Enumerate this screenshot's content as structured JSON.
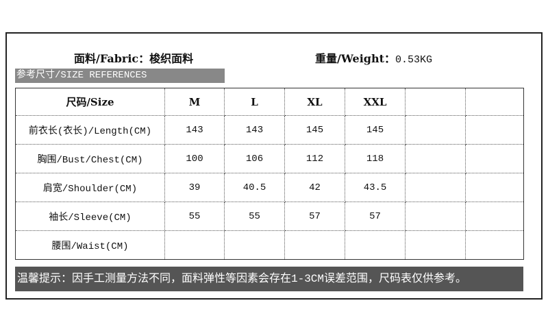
{
  "fabric": {
    "label": "面料/Fabric：",
    "value": "梭织面料"
  },
  "weight": {
    "label": "重量/Weight：",
    "value": "0.53KG"
  },
  "section_title": "参考尺寸/SIZE REFERENCES",
  "table": {
    "headers": [
      "尺码/Size",
      "M",
      "L",
      "XL",
      "XXL",
      "",
      ""
    ],
    "rows": [
      [
        "前衣长(衣长)/Length(CM)",
        "143",
        "143",
        "145",
        "145",
        "",
        ""
      ],
      [
        "胸围/Bust/Chest(CM)",
        "100",
        "106",
        "112",
        "118",
        "",
        ""
      ],
      [
        "肩宽/Shoulder(CM)",
        "39",
        "40.5",
        "42",
        "43.5",
        "",
        ""
      ],
      [
        "袖长/Sleeve(CM)",
        "55",
        "55",
        "57",
        "57",
        "",
        ""
      ],
      [
        "腰围/Waist(CM)",
        "",
        "",
        "",
        "",
        "",
        ""
      ]
    ]
  },
  "note": "温馨提示：因手工测量方法不同，面料弹性等因素会存在1-3CM误差范围，尺码表仅供参考。"
}
